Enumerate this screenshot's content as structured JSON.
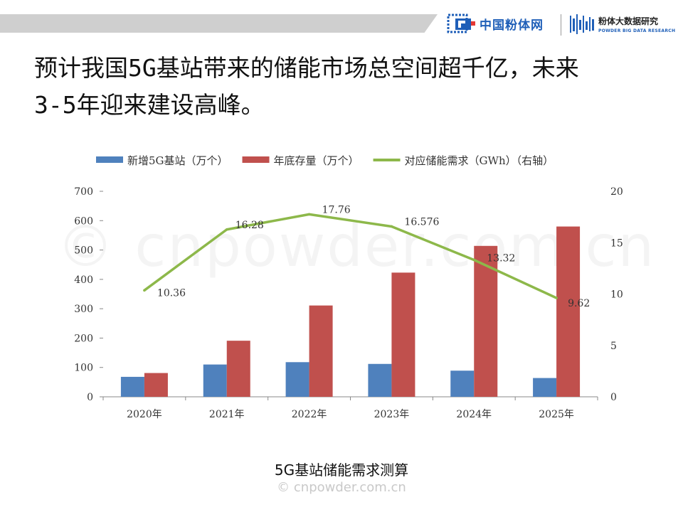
{
  "header": {
    "logo_left_text": "中国粉体网",
    "logo_right_cn": "粉体大数据研究",
    "logo_right_en": "POWDER BIG DATA RESEARCH"
  },
  "headline": "预计我国5G基站带来的储能市场总空间超千亿，未来\n3-5年迎来建设高峰。",
  "caption": "5G基站储能需求测算",
  "watermark": "© cnpowder.com.cn",
  "background_watermark": "© cnpowder.com.cn",
  "colors": {
    "new_stations": "#4f81bd",
    "year_end_stock": "#c0504d",
    "storage_demand": "#8db84a"
  },
  "chart_data": {
    "type": "bar",
    "categories": [
      "2020年",
      "2021年",
      "2022年",
      "2023年",
      "2024年",
      "2025年"
    ],
    "series": [
      {
        "name": "新增5G基站（万个）",
        "type": "bar",
        "axis": "left",
        "values": [
          68,
          110,
          118,
          112,
          89,
          64
        ]
      },
      {
        "name": "年底存量（万个）",
        "type": "bar",
        "axis": "left",
        "values": [
          81,
          191,
          311,
          423,
          514,
          580
        ]
      },
      {
        "name": "对应储能需求（GWh）（右轴）",
        "type": "line",
        "axis": "right",
        "values": [
          10.36,
          16.28,
          17.76,
          16.576,
          13.32,
          9.62
        ],
        "labels": [
          "10.36",
          "16.28",
          "17.76",
          "16.576",
          "13.32",
          "9.62"
        ]
      }
    ],
    "left_axis": {
      "ylim": [
        0,
        700
      ],
      "ticks": [
        "0",
        "100",
        "200",
        "300",
        "400",
        "500",
        "600",
        "700"
      ]
    },
    "right_axis": {
      "ylim": [
        0,
        20
      ],
      "ticks": [
        "0",
        "5",
        "10",
        "15",
        "20"
      ]
    },
    "legend": "top",
    "grid": false
  }
}
